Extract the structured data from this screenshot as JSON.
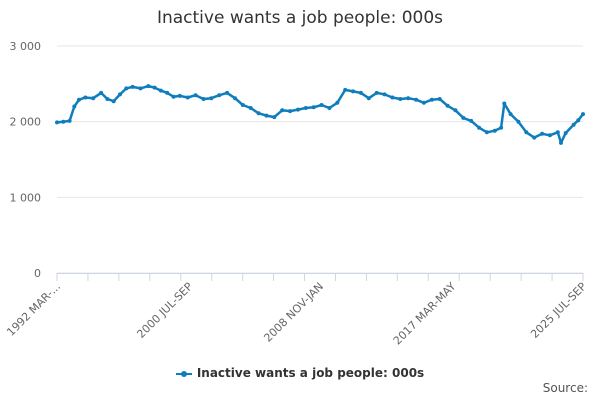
{
  "colors": {
    "series": "#0e7dbd",
    "grid": "#e6e6e6",
    "axis": "#ccd6eb",
    "text": "#333333"
  },
  "footer": {
    "source": "Source:"
  },
  "chart_data": {
    "type": "line",
    "title": "Inactive wants a job people: 000s",
    "xlabel": "",
    "ylabel": "",
    "ylim": [
      0,
      3000
    ],
    "yticks": [
      0,
      1000,
      2000,
      3000
    ],
    "ytick_labels": [
      "0",
      "1 000",
      "2 000",
      "3 000"
    ],
    "xlim": [
      "1992 MAR-MAY",
      "2025 JUL-SEP"
    ],
    "xtick_labels": [
      "1992 MAR-...",
      "2000 JUL-SEP",
      "2008 NOV-JAN",
      "2017 MAR-MAY",
      "2025 JUL-SEP"
    ],
    "xtick_positions": [
      1992.2,
      2000.6,
      2008.9,
      2017.3,
      2025.6
    ],
    "grid": true,
    "legend": "bottom-center",
    "series": [
      {
        "name": "Inactive wants a job people: 000s",
        "x": [
          1992.2,
          1992.6,
          1993.0,
          1993.3,
          1993.6,
          1994.0,
          1994.5,
          1995.0,
          1995.4,
          1995.8,
          1996.2,
          1996.6,
          1997.0,
          1997.5,
          1998.0,
          1998.4,
          1998.8,
          1999.2,
          1999.6,
          2000.0,
          2000.5,
          2001.0,
          2001.5,
          2002.0,
          2002.5,
          2003.0,
          2003.5,
          2004.0,
          2004.5,
          2005.0,
          2005.5,
          2006.0,
          2006.5,
          2007.0,
          2007.5,
          2008.0,
          2008.5,
          2009.0,
          2009.5,
          2010.0,
          2010.5,
          2011.0,
          2011.5,
          2012.0,
          2012.5,
          2013.0,
          2013.5,
          2014.0,
          2014.5,
          2015.0,
          2015.5,
          2016.0,
          2016.5,
          2017.0,
          2017.5,
          2018.0,
          2018.5,
          2019.0,
          2019.5,
          2020.0,
          2020.4,
          2020.6,
          2021.0,
          2021.5,
          2022.0,
          2022.5,
          2023.0,
          2023.5,
          2024.0,
          2024.2,
          2024.5,
          2025.0,
          2025.3,
          2025.6
        ],
        "y": [
          1990,
          2000,
          2010,
          2200,
          2290,
          2320,
          2310,
          2380,
          2300,
          2270,
          2360,
          2440,
          2460,
          2440,
          2470,
          2450,
          2410,
          2380,
          2330,
          2340,
          2320,
          2350,
          2300,
          2310,
          2350,
          2380,
          2310,
          2220,
          2180,
          2110,
          2080,
          2060,
          2150,
          2140,
          2160,
          2180,
          2190,
          2220,
          2180,
          2250,
          2420,
          2400,
          2380,
          2310,
          2380,
          2360,
          2320,
          2300,
          2310,
          2290,
          2250,
          2290,
          2300,
          2210,
          2150,
          2050,
          2010,
          1920,
          1860,
          1880,
          1920,
          2240,
          2100,
          2000,
          1860,
          1790,
          1840,
          1820,
          1860,
          1720,
          1850,
          1960,
          2020,
          2100
        ]
      }
    ]
  }
}
